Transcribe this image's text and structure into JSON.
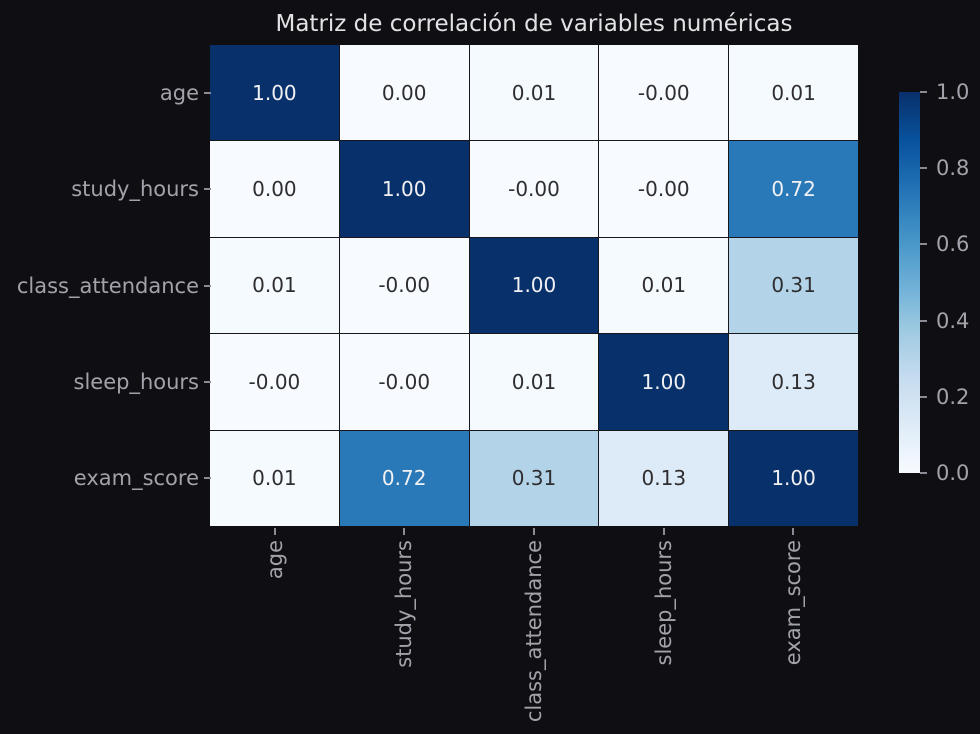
{
  "chart_data": {
    "type": "heatmap",
    "title": "Matriz de correlación de variables numéricas",
    "categories": [
      "age",
      "study_hours",
      "class_attendance",
      "sleep_hours",
      "exam_score"
    ],
    "matrix": [
      [
        "1.00",
        "0.00",
        "0.01",
        "-0.00",
        "0.01"
      ],
      [
        "0.00",
        "1.00",
        "-0.00",
        "-0.00",
        "0.72"
      ],
      [
        "0.01",
        "-0.00",
        "1.00",
        "0.01",
        "0.31"
      ],
      [
        "-0.00",
        "-0.00",
        "0.01",
        "1.00",
        "0.13"
      ],
      [
        "0.01",
        "0.72",
        "0.31",
        "0.13",
        "1.00"
      ]
    ],
    "colormap": "Blues",
    "colormap_stops": [
      [
        0.0,
        "#f7fbff"
      ],
      [
        0.125,
        "#deebf7"
      ],
      [
        0.25,
        "#c6dbef"
      ],
      [
        0.375,
        "#9ecae1"
      ],
      [
        0.5,
        "#6baed6"
      ],
      [
        0.625,
        "#4292c6"
      ],
      [
        0.75,
        "#2171b5"
      ],
      [
        0.875,
        "#08519c"
      ],
      [
        1.0,
        "#08306b"
      ]
    ],
    "colorbar_ticks": [
      "0.0",
      "0.2",
      "0.4",
      "0.6",
      "0.8",
      "1.0"
    ],
    "vmin": 0.0,
    "vmax": 1.0,
    "legend_position": "right",
    "grid": false
  },
  "colors": {
    "background": "#0f0f13",
    "title_text": "#e2e2e5",
    "tick_label": "#a2a2ab",
    "tick_mark": "#8b8b94",
    "grid_line": "#17171c",
    "annotation_dark": "#2e2e30",
    "annotation_light": "#f1f1f3"
  }
}
